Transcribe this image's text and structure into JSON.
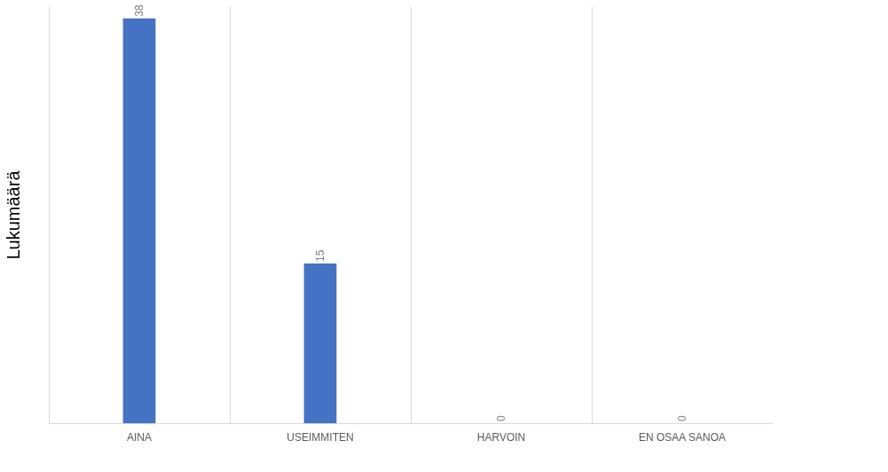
{
  "chart_data": {
    "type": "bar",
    "ylabel": "Lukumäärä",
    "categories": [
      "AINA",
      "USEIMMITEN",
      "HARVOIN",
      "EN OSAA SANOA"
    ],
    "values": [
      38,
      15,
      0,
      0
    ],
    "color": "#4472c4",
    "data_labels": true,
    "grid": "x",
    "tick_labels": "x"
  }
}
